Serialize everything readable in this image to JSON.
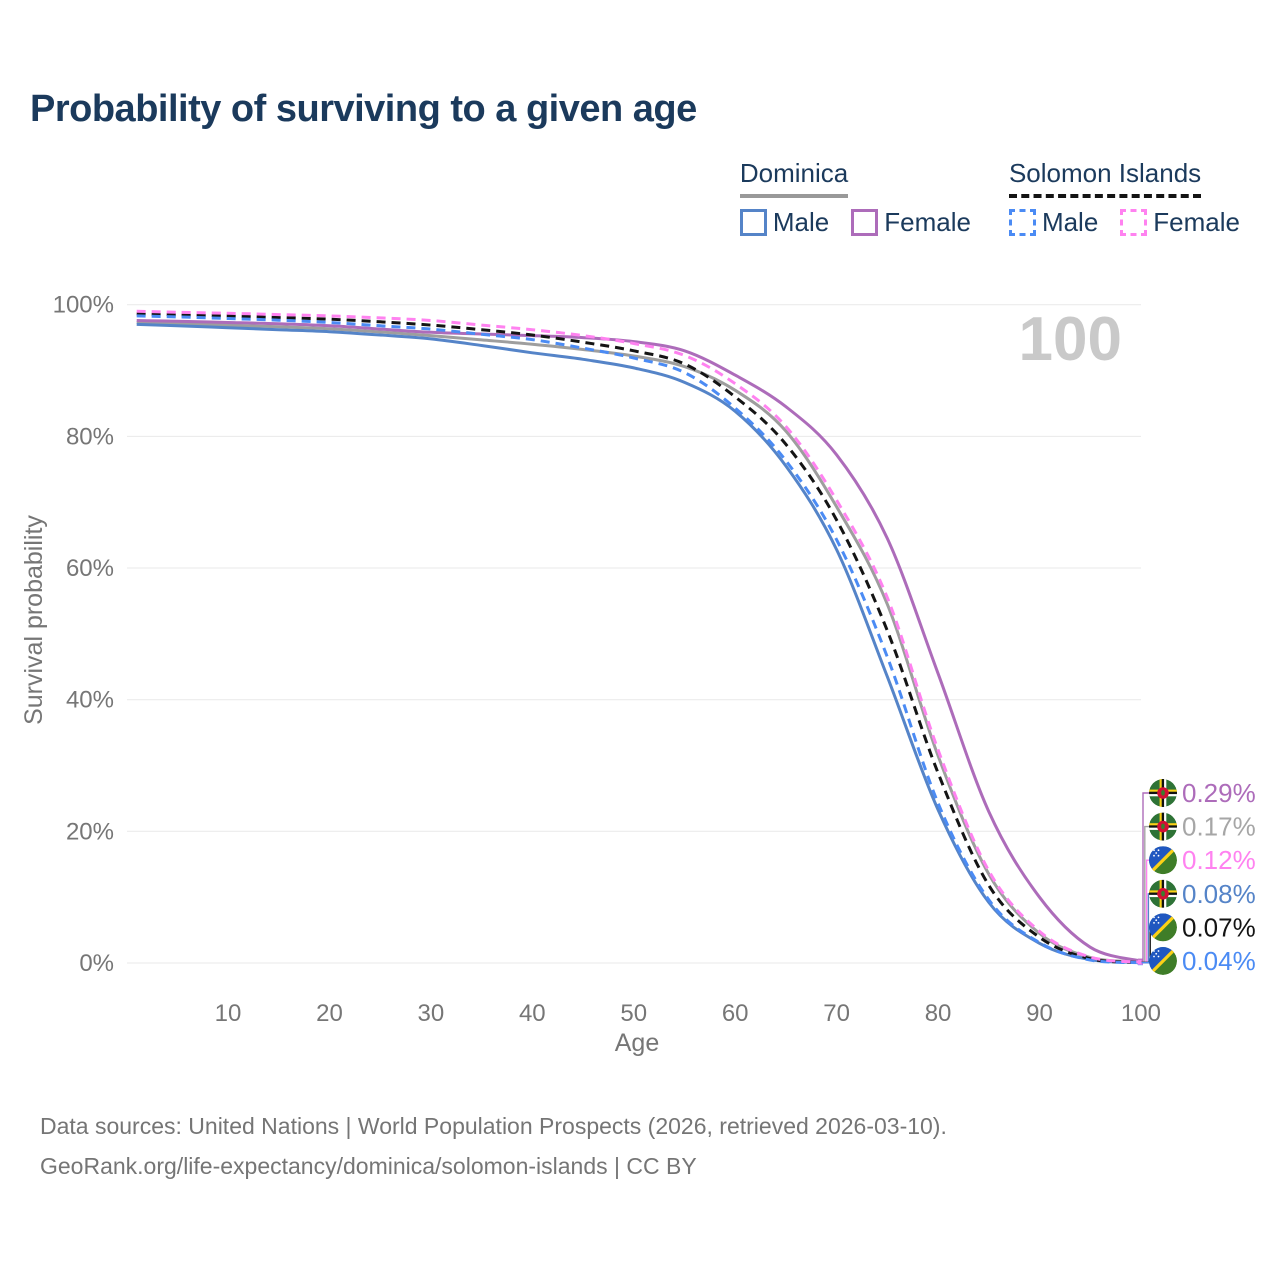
{
  "title": "Probability of surviving to a given age",
  "watermark": "100",
  "legend": {
    "groups": [
      {
        "id": "dominica",
        "label": "Dominica",
        "dashed": false,
        "underline_color": "#999999",
        "items": [
          {
            "label": "Male",
            "color": "#5584c8"
          },
          {
            "label": "Female",
            "color": "#ad6cba"
          }
        ]
      },
      {
        "id": "solomon-islands",
        "label": "Solomon Islands",
        "dashed": true,
        "underline_color": "#141414",
        "items": [
          {
            "label": "Male",
            "color": "#4b8bf4"
          },
          {
            "label": "Female",
            "color": "#ff82f0"
          }
        ]
      }
    ]
  },
  "chart_data": {
    "type": "line",
    "title": "Probability of surviving to a given age",
    "xlabel": "Age",
    "ylabel": "Survival probability",
    "xlim": [
      0,
      100
    ],
    "ylim": [
      0,
      100
    ],
    "x_ticks": [
      10,
      20,
      30,
      40,
      50,
      60,
      70,
      80,
      90,
      100
    ],
    "y_ticks": [
      {
        "value": 0,
        "label": "0%"
      },
      {
        "value": 20,
        "label": "20%"
      },
      {
        "value": 40,
        "label": "40%"
      },
      {
        "value": 60,
        "label": "60%"
      },
      {
        "value": 80,
        "label": "80%"
      },
      {
        "value": 100,
        "label": "100%"
      }
    ],
    "grid": "horizontal",
    "legend_position": "top-right",
    "ages": [
      1,
      5,
      10,
      15,
      20,
      25,
      30,
      35,
      40,
      45,
      50,
      55,
      60,
      65,
      70,
      75,
      80,
      85,
      90,
      95,
      100
    ],
    "series": [
      {
        "id": "dominica-all",
        "name": "Dominica",
        "color": "#9e9e9e",
        "dashed": false,
        "end_label": "0.17%",
        "values": [
          97.3,
          97.15,
          96.9,
          96.65,
          96.35,
          95.85,
          95.3,
          94.65,
          94.0,
          93.2,
          92.2,
          90.6,
          87.0,
          80.8,
          69.3,
          54.5,
          31.5,
          13.5,
          4.5,
          0.85,
          0.17
        ]
      },
      {
        "id": "dominica-female",
        "name": "Dominica Female",
        "color": "#ad6cba",
        "dashed": false,
        "end_label": "0.29%",
        "values": [
          97.6,
          97.5,
          97.3,
          97.1,
          96.8,
          96.3,
          95.8,
          95.55,
          95.3,
          95.0,
          94.4,
          93.0,
          89.3,
          84.5,
          77.2,
          64.5,
          44.0,
          23.0,
          10.0,
          2.4,
          0.29
        ]
      },
      {
        "id": "dominica-male",
        "name": "Dominica Male",
        "color": "#5584c8",
        "dashed": false,
        "end_label": "0.08%",
        "values": [
          97.0,
          96.8,
          96.5,
          96.2,
          95.9,
          95.4,
          94.8,
          93.8,
          92.7,
          91.7,
          90.4,
          88.2,
          83.8,
          75.5,
          62.8,
          43.5,
          23.3,
          9.2,
          3.0,
          0.5,
          0.08
        ]
      },
      {
        "id": "solomon-islands-all",
        "name": "Solomon Islands",
        "color": "#141414",
        "dashed": true,
        "end_label": "0.07%",
        "values": [
          98.6,
          98.45,
          98.3,
          98.05,
          97.8,
          97.4,
          96.9,
          96.2,
          95.4,
          94.3,
          93.0,
          91.0,
          86.0,
          78.8,
          67.3,
          50.5,
          28.9,
          11.8,
          3.9,
          0.65,
          0.07
        ]
      },
      {
        "id": "solomon-islands-male",
        "name": "Solomon Islands Male",
        "color": "#4b8bf4",
        "dashed": true,
        "end_label": "0.04%",
        "values": [
          98.3,
          98.15,
          97.9,
          97.65,
          97.3,
          96.8,
          96.3,
          95.5,
          94.7,
          93.4,
          91.9,
          89.7,
          84.3,
          76.3,
          64.3,
          46.5,
          24.3,
          9.6,
          3.1,
          0.45,
          0.04
        ]
      },
      {
        "id": "solomon-islands-female",
        "name": "Solomon Islands Female",
        "color": "#ff82f0",
        "dashed": true,
        "end_label": "0.12%",
        "values": [
          99.0,
          98.85,
          98.7,
          98.5,
          98.3,
          98.0,
          97.6,
          96.9,
          96.2,
          95.3,
          94.1,
          92.3,
          88.0,
          81.5,
          70.3,
          55.5,
          32.4,
          14.0,
          4.8,
          0.9,
          0.12
        ]
      }
    ]
  },
  "end_labels": [
    {
      "value": "0.29%",
      "flag": "dominica",
      "series": "Dominica Female",
      "color": "#ad6cba"
    },
    {
      "value": "0.17%",
      "flag": "dominica",
      "series": "Dominica",
      "color": "#a6a6a6"
    },
    {
      "value": "0.12%",
      "flag": "solomon-islands",
      "series": "Solomon Islands Female",
      "color": "#ff82f0"
    },
    {
      "value": "0.08%",
      "flag": "dominica",
      "series": "Dominica Male",
      "color": "#5584c8"
    },
    {
      "value": "0.07%",
      "flag": "solomon-islands",
      "series": "Solomon Islands",
      "color": "#141414"
    },
    {
      "value": "0.04%",
      "flag": "solomon-islands",
      "series": "Solomon Islands Male",
      "color": "#4b8bf4"
    }
  ],
  "footer": {
    "line1": "Data sources: United Nations | World Population Prospects (2026, retrieved 2026-03-10).",
    "line2": "GeoRank.org/life-expectancy/dominica/solomon-islands | CC BY"
  }
}
